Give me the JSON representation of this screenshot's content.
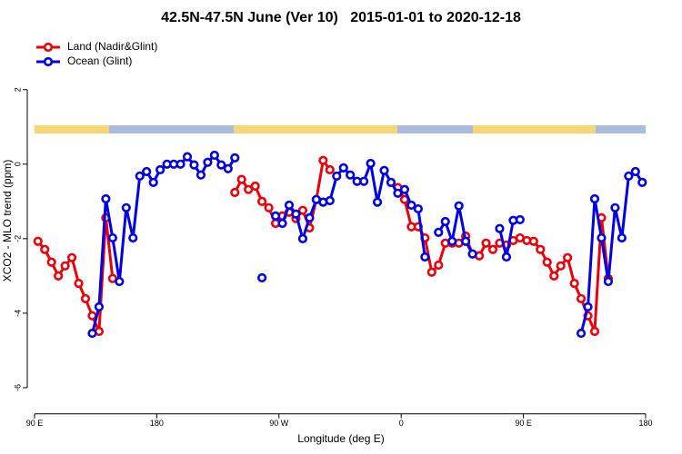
{
  "chart_data": {
    "type": "line",
    "title": "42.5N-47.5N June (Ver 10)   2015-01-01 to 2020-12-18",
    "xlabel": "Longitude (deg E)",
    "ylabel": "XCO2 - MLO trend (ppm)",
    "xlim": [
      90,
      540
    ],
    "ylim": [
      -6.7,
      3.7
    ],
    "xticks": [
      {
        "value": 90,
        "label": "90 E"
      },
      180,
      {
        "value": 270,
        "label": "90 W"
      },
      {
        "value": 360,
        "label": "0"
      },
      {
        "value": 450,
        "label": "90 E"
      },
      {
        "value": 540,
        "label": "180"
      }
    ],
    "yticks": [
      -6,
      -4,
      -2,
      0,
      2
    ],
    "legend": "top-left",
    "series": [
      {
        "name": "Land (Nadir&Glint)",
        "color": "#e8000b",
        "x": [
          92.5,
          97.5,
          102.5,
          107.5,
          112.5,
          117.5,
          122.5,
          127.5,
          132.5,
          137.5,
          142.5,
          147.5,
          192.5,
          237.5,
          242.5,
          247.5,
          252.5,
          257.5,
          262.5,
          267.5,
          272.5,
          277.5,
          282.5,
          287.5,
          292.5,
          297.5,
          302.5,
          307.5,
          332.5,
          357.5,
          362.5,
          367.5,
          372.5,
          377.5,
          382.5,
          387.5,
          392.5,
          397.5,
          402.5,
          407.5,
          412.5,
          417.5,
          422.5,
          427.5,
          432.5,
          437.5,
          442.5,
          447.5,
          452.5,
          457.5,
          462.5,
          467.5,
          472.5,
          477.5,
          482.5,
          487.5,
          492.5,
          497.5,
          502.5,
          507.5,
          512.5
        ],
        "values": [
          -2.07,
          -2.29,
          -2.63,
          -3.0,
          -2.73,
          -2.51,
          -3.2,
          -3.61,
          -4.07,
          -4.49,
          -1.44,
          -3.07,
          null,
          -0.76,
          -0.41,
          -0.68,
          -0.59,
          -1.0,
          -1.17,
          -1.59,
          -1.39,
          -1.29,
          -1.46,
          -1.24,
          -1.71,
          -0.95,
          0.1,
          -0.15,
          null,
          -0.63,
          -0.95,
          -1.68,
          -1.68,
          -1.98,
          -2.9,
          -2.71,
          -2.12,
          -2.12,
          -2.12,
          -1.93,
          -2.41,
          -2.46,
          -2.12,
          -2.29,
          -2.12,
          -2.17,
          -2.05,
          -1.98,
          -2.05,
          -2.07,
          -2.29,
          -2.63,
          -3.0,
          -2.73,
          -2.51,
          -3.2,
          -3.61,
          -4.07,
          -4.49,
          -1.44,
          -3.07
        ]
      },
      {
        "name": "Ocean (Glint)",
        "color": "#0000e0",
        "x": [
          132.5,
          137.5,
          142.5,
          147.5,
          152.5,
          157.5,
          162.5,
          167.5,
          172.5,
          177.5,
          182.5,
          187.5,
          192.5,
          197.5,
          202.5,
          207.5,
          212.5,
          217.5,
          222.5,
          227.5,
          232.5,
          237.5,
          247.5,
          257.5,
          262.5,
          267.5,
          272.5,
          277.5,
          282.5,
          287.5,
          292.5,
          297.5,
          302.5,
          307.5,
          312.5,
          317.5,
          322.5,
          327.5,
          332.5,
          337.5,
          342.5,
          347.5,
          352.5,
          357.5,
          362.5,
          367.5,
          372.5,
          377.5,
          382.5,
          387.5,
          392.5,
          397.5,
          402.5,
          407.5,
          412.5,
          422.5,
          432.5,
          437.5,
          442.5,
          447.5,
          470,
          492.5,
          497.5,
          502.5,
          507.5,
          512.5,
          517.5,
          522.5,
          527.5,
          532.5,
          537.5
        ],
        "values": [
          -4.54,
          -3.83,
          -0.93,
          -1.98,
          -3.15,
          -1.17,
          -1.98,
          -0.32,
          -0.2,
          -0.49,
          -0.15,
          0,
          0,
          0,
          0.2,
          -0.02,
          -0.29,
          0.05,
          0.24,
          -0.02,
          -0.12,
          0.17,
          null,
          -3.05,
          null,
          -1.39,
          -1.59,
          -1.1,
          -1.34,
          -2.0,
          -1.44,
          -0.95,
          -1.02,
          -0.98,
          -0.32,
          -0.1,
          -0.29,
          -0.46,
          -0.46,
          0.02,
          -1.02,
          -0.17,
          -0.49,
          -0.78,
          -0.68,
          -1.1,
          -1.2,
          -2.49,
          null,
          -1.83,
          -1.54,
          -2.07,
          -1.12,
          -2.07,
          -2.41,
          null,
          -1.73,
          -2.49,
          -1.51,
          -1.49,
          null,
          -4.54,
          -3.83,
          -0.93,
          -1.98,
          -3.15,
          -1.17,
          -1.98,
          -0.32,
          -0.2,
          -0.49
        ]
      }
    ]
  }
}
